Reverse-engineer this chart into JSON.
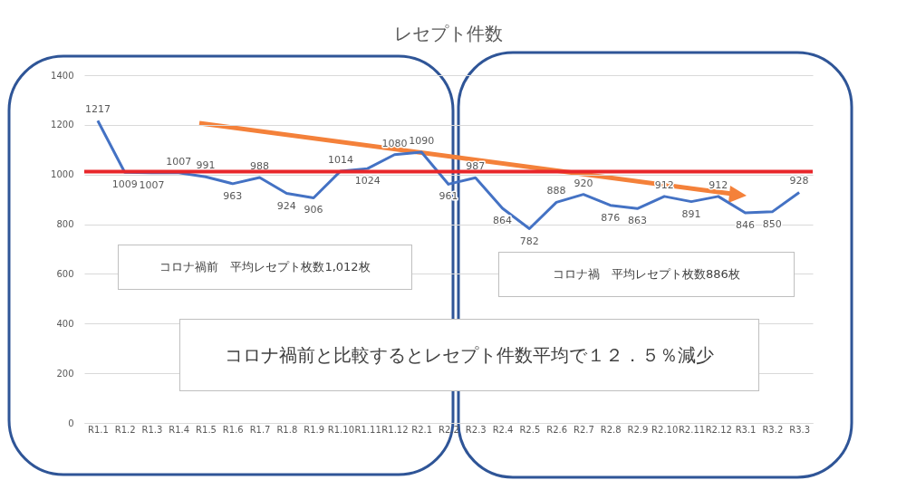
{
  "chart_data": {
    "type": "line",
    "title": "レセプト件数",
    "categories": [
      "R1.1",
      "R1.2",
      "R1.3",
      "R1.4",
      "R1.5",
      "R1.6",
      "R1.7",
      "R1.8",
      "R1.9",
      "R1.10",
      "R1.11",
      "R1.12",
      "R2.1",
      "R2.2",
      "R2.3",
      "R2.4",
      "R2.5",
      "R2.6",
      "R2.7",
      "R2.8",
      "R2.9",
      "R2.10",
      "R2.11",
      "R2.12",
      "R3.1",
      "R3.2",
      "R3.3"
    ],
    "series": [
      {
        "color": "#4472c4",
        "values": [
          1217,
          1009,
          1007,
          1007,
          991,
          963,
          988,
          924,
          906,
          1014,
          1024,
          1080,
          1090,
          961,
          987,
          864,
          782,
          888,
          920,
          876,
          863,
          912,
          891,
          912,
          846,
          850,
          928
        ]
      }
    ],
    "ylim": [
      0,
      1400
    ],
    "yticks": [
      0,
      200,
      400,
      600,
      800,
      1000,
      1200,
      1400
    ],
    "grid": "y",
    "data_labels": true,
    "marker": "none",
    "ref_lines": [
      {
        "axis": "y",
        "value": 1012,
        "color": "#e8262a"
      }
    ],
    "annotations": [
      "コロナ禍前　平均レセプト枚数1,012枚",
      "コロナ禍　平均レセプト枚数886枚",
      "コロナ禍前と比較するとレセプト件数平均で１２．５％減少"
    ]
  }
}
